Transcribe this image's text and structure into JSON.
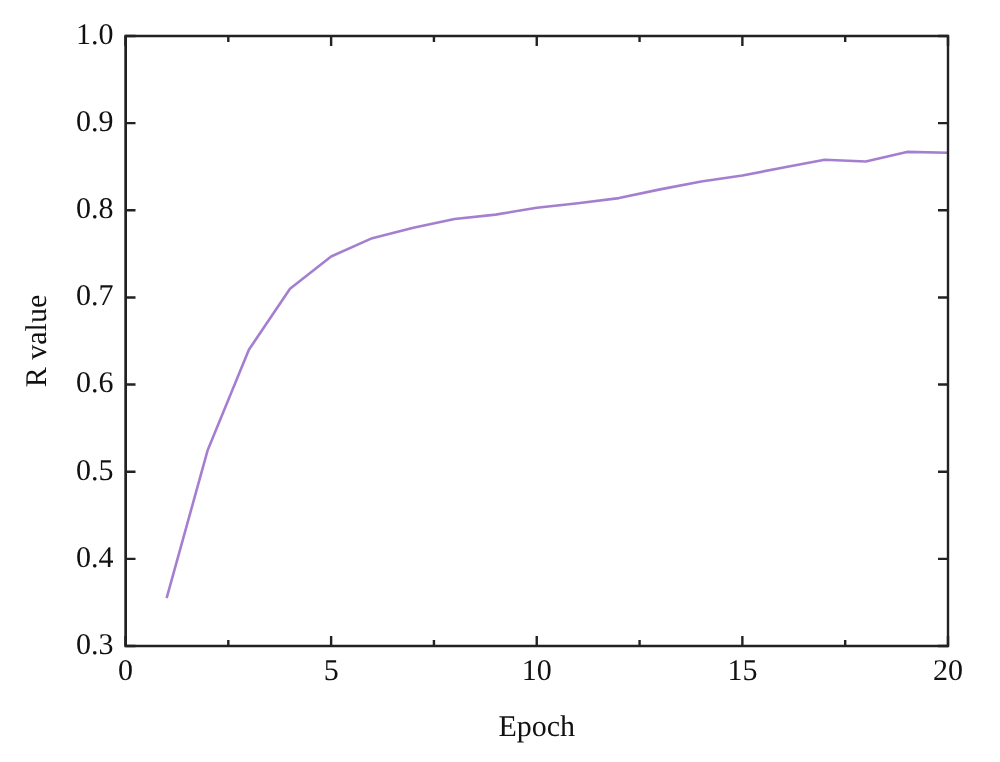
{
  "chart_data": {
    "type": "line",
    "xlabel": "Epoch",
    "ylabel": "R value",
    "x": [
      1,
      2,
      3,
      4,
      5,
      6,
      7,
      8,
      9,
      10,
      11,
      12,
      13,
      14,
      15,
      16,
      17,
      18,
      19,
      20
    ],
    "series": [
      {
        "color": "#a57fcf",
        "values": [
          0.355,
          0.525,
          0.64,
          0.71,
          0.747,
          0.768,
          0.78,
          0.79,
          0.795,
          0.803,
          0.808,
          0.814,
          0.824,
          0.833,
          0.84,
          0.849,
          0.858,
          0.856,
          0.867,
          0.866
        ]
      }
    ],
    "xlim": [
      0,
      20
    ],
    "xticks": [
      0,
      {
        "value": 2.5,
        "label": null
      },
      5,
      {
        "value": 7.5,
        "label": null
      },
      10,
      {
        "value": 12.5,
        "label": null
      },
      15,
      {
        "value": 17.5,
        "label": null
      },
      20
    ],
    "ylim": [
      0.3,
      1.0
    ],
    "yticks": [
      0.3,
      0.4,
      0.5,
      0.6,
      0.7,
      0.8,
      0.9,
      {
        "value": 1.0,
        "label": "1.0"
      }
    ],
    "grid": false,
    "legend": false,
    "marker": "none",
    "line_style": "solid"
  }
}
